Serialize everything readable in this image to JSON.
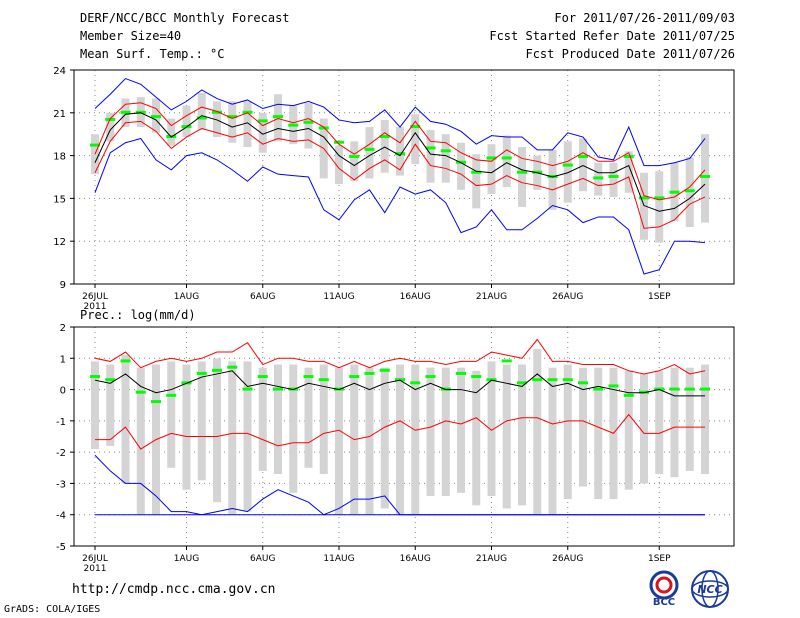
{
  "header": {
    "title": "DERF/NCC/BCC Monthly Forecast",
    "member_size": "Member Size=40",
    "variable": "Mean Surf. Temp.: °C",
    "period": "For 2011/07/26-2011/09/03",
    "started": "Fcst Started Refer Date 2011/07/25",
    "produced": "Fcst Produced Date 2011/07/26"
  },
  "footer": {
    "url": "http://cmdp.ncc.cma.gov.cn",
    "grads": "GrADS: COLA/IGES",
    "logo1_text": "BCC",
    "logo2_text": "NCC"
  },
  "colors": {
    "box": "#d4d4d4",
    "median": "#00ff00",
    "mean": "#000000",
    "spread": "#ff0000",
    "extreme": "#0000ff"
  },
  "chart_data": [
    {
      "type": "box",
      "title": "Mean Surf. Temp.: °C",
      "x_ticks": [
        "26JUL",
        "1AUG",
        "6AUG",
        "11AUG",
        "16AUG",
        "21AUG",
        "26AUG",
        "1SEP"
      ],
      "x_tick_days": [
        0,
        6,
        11,
        16,
        21,
        26,
        31,
        37
      ],
      "x_year_label": "2011",
      "ylim": [
        9,
        24
      ],
      "y_ticks": [
        9,
        12,
        15,
        18,
        21,
        24
      ],
      "ensemble_mean": [
        17.5,
        19.8,
        20.9,
        21.0,
        20.5,
        19.3,
        20.0,
        20.8,
        20.5,
        20.0,
        20.3,
        19.5,
        19.9,
        19.7,
        19.9,
        19.3,
        18.0,
        17.3,
        18.0,
        18.6,
        18.0,
        19.6,
        18.1,
        18.0,
        17.5,
        16.9,
        16.8,
        17.5,
        17.0,
        16.8,
        16.5,
        16.8,
        17.3,
        16.8,
        16.8,
        17.3,
        14.5,
        14.1,
        14.3,
        15.0,
        16.0
      ],
      "spread_upper": [
        18.1,
        20.6,
        21.6,
        21.7,
        21.3,
        20.1,
        20.8,
        21.4,
        21.1,
        20.6,
        21.0,
        20.1,
        20.6,
        20.3,
        20.6,
        20.0,
        18.8,
        18.1,
        18.8,
        19.6,
        18.9,
        20.4,
        19.0,
        18.9,
        18.2,
        17.7,
        17.6,
        18.4,
        17.8,
        17.6,
        17.3,
        17.6,
        18.2,
        17.6,
        17.6,
        18.2,
        15.2,
        14.9,
        15.1,
        15.8,
        17.0
      ],
      "spread_lower": [
        16.8,
        19.0,
        20.3,
        20.4,
        19.7,
        18.5,
        19.3,
        19.9,
        19.6,
        19.3,
        19.6,
        18.8,
        19.2,
        19.0,
        19.1,
        18.5,
        17.1,
        16.3,
        17.1,
        17.7,
        17.0,
        18.8,
        17.3,
        17.1,
        16.7,
        15.9,
        16.0,
        16.6,
        16.1,
        15.9,
        15.6,
        16.0,
        16.4,
        15.9,
        16.0,
        16.5,
        12.9,
        13.0,
        13.5,
        14.6,
        15.1
      ],
      "max": [
        21.3,
        22.3,
        23.4,
        23.0,
        22.1,
        21.2,
        21.8,
        22.6,
        22.0,
        21.6,
        21.9,
        21.3,
        21.6,
        21.5,
        21.8,
        21.4,
        20.5,
        20.3,
        20.4,
        21.2,
        20.0,
        21.4,
        20.4,
        20.2,
        19.7,
        18.8,
        19.4,
        19.3,
        19.3,
        18.4,
        18.4,
        19.6,
        19.3,
        17.9,
        17.7,
        20.0,
        17.3,
        17.3,
        17.5,
        17.8,
        19.2
      ],
      "min": [
        15.4,
        18.2,
        18.9,
        19.2,
        17.7,
        17.0,
        18.0,
        18.2,
        17.7,
        17.0,
        16.2,
        17.2,
        16.7,
        16.6,
        16.5,
        14.2,
        13.5,
        14.9,
        15.6,
        14.0,
        15.8,
        15.3,
        15.6,
        14.7,
        12.6,
        13.0,
        14.2,
        12.8,
        12.8,
        13.6,
        14.5,
        14.2,
        13.3,
        13.7,
        13.7,
        12.8,
        9.7,
        10.0,
        12.0,
        12.0,
        11.9
      ],
      "box_hi": [
        19.5,
        21.0,
        22.0,
        22.1,
        22.0,
        20.6,
        21.5,
        22.4,
        21.8,
        21.8,
        21.8,
        21.0,
        22.3,
        21.5,
        21.7,
        20.6,
        18.7,
        19.0,
        20.0,
        20.5,
        20.0,
        20.9,
        19.8,
        19.5,
        18.9,
        18.1,
        18.8,
        19.4,
        18.6,
        18.0,
        18.4,
        19.0,
        19.2,
        17.5,
        17.5,
        18.3,
        16.8,
        16.9,
        17.5,
        17.9,
        19.5
      ],
      "box_lo": [
        16.7,
        19.0,
        20.0,
        20.0,
        19.6,
        18.7,
        19.3,
        19.8,
        19.3,
        18.9,
        18.6,
        18.2,
        19.0,
        18.8,
        18.5,
        16.4,
        16.0,
        16.2,
        16.4,
        16.8,
        16.6,
        17.4,
        16.1,
        16.1,
        15.6,
        14.3,
        15.3,
        15.8,
        14.4,
        15.6,
        14.2,
        14.7,
        15.5,
        15.2,
        15.1,
        15.4,
        12.1,
        11.9,
        13.4,
        13.0,
        13.3
      ],
      "median": [
        18.7,
        20.5,
        21.0,
        21.0,
        20.7,
        19.3,
        20.0,
        20.6,
        21.0,
        20.7,
        21.0,
        20.4,
        20.7,
        20.1,
        20.3,
        19.9,
        18.9,
        17.9,
        18.4,
        19.3,
        18.1,
        20.0,
        18.5,
        18.3,
        17.5,
        16.8,
        17.8,
        17.8,
        16.8,
        16.8,
        16.5,
        17.3,
        17.9,
        16.4,
        16.5,
        17.9,
        15.0,
        15.0,
        15.4,
        15.5,
        16.5
      ]
    },
    {
      "type": "box",
      "title": "Prec.: log(mm/d)",
      "x_ticks": [
        "26JUL",
        "1AUG",
        "6AUG",
        "11AUG",
        "16AUG",
        "21AUG",
        "26AUG",
        "1SEP"
      ],
      "x_tick_days": [
        0,
        6,
        11,
        16,
        21,
        26,
        31,
        37
      ],
      "x_year_label": "2011",
      "ylim": [
        -5,
        2
      ],
      "y_ticks": [
        -5,
        -4,
        -3,
        -2,
        -1,
        0,
        1,
        2
      ],
      "ensemble_mean": [
        0.3,
        0.2,
        0.5,
        0.1,
        -0.1,
        0.0,
        0.2,
        0.4,
        0.5,
        0.6,
        0.1,
        0.2,
        0.1,
        0.0,
        0.2,
        0.1,
        0.0,
        0.2,
        0.0,
        0.2,
        0.3,
        0.0,
        0.2,
        0.0,
        0.0,
        -0.1,
        0.3,
        0.2,
        0.1,
        0.5,
        0.1,
        0.2,
        0.0,
        0.1,
        0.0,
        -0.1,
        -0.1,
        0.0,
        -0.2,
        -0.2,
        -0.2
      ],
      "spread_upper": [
        1.0,
        0.9,
        1.2,
        0.7,
        0.9,
        1.0,
        0.9,
        1.0,
        1.2,
        1.2,
        1.5,
        0.8,
        1.0,
        1.0,
        0.9,
        0.9,
        0.7,
        0.9,
        0.7,
        0.9,
        1.0,
        0.9,
        0.9,
        0.8,
        0.9,
        0.9,
        1.2,
        1.1,
        1.0,
        1.6,
        0.9,
        0.9,
        0.8,
        0.8,
        0.8,
        0.6,
        0.5,
        0.6,
        0.8,
        0.5,
        0.6
      ],
      "spread_lower": [
        -1.6,
        -1.6,
        -1.2,
        -1.9,
        -1.6,
        -1.4,
        -1.5,
        -1.5,
        -1.5,
        -1.4,
        -1.4,
        -1.6,
        -1.8,
        -1.7,
        -1.7,
        -1.4,
        -1.3,
        -1.6,
        -1.5,
        -1.2,
        -1.0,
        -1.3,
        -1.2,
        -1.0,
        -1.1,
        -0.9,
        -1.3,
        -1.0,
        -0.9,
        -0.9,
        -1.1,
        -1.0,
        -1.0,
        -1.2,
        -1.4,
        -0.8,
        -1.4,
        -1.4,
        -1.2,
        -1.2,
        -1.2
      ],
      "max": [
        -2.1,
        -2.6,
        -3.0,
        -3.0,
        -3.4,
        -3.9,
        -3.9,
        -4.0,
        -3.9,
        -3.8,
        -3.9,
        -3.5,
        -3.2,
        -3.4,
        -3.6,
        -4.0,
        -3.8,
        -3.5,
        -3.5,
        -3.4,
        -4.0,
        -4.0,
        -4.0,
        -4.0,
        -4.0,
        -4.0,
        -4.0,
        -4.0,
        -4.0,
        -4.0,
        -4.0,
        -4.0,
        -4.0,
        -4.0,
        -4.0,
        -4.0,
        -4.0,
        -4.0,
        -4.0,
        -4.0,
        -4.0
      ],
      "min": [
        -4.0,
        -4.0,
        -4.0,
        -4.0,
        -4.0,
        -4.0,
        -4.0,
        -4.0,
        -4.0,
        -4.0,
        -4.0,
        -4.0,
        -4.0,
        -4.0,
        -4.0,
        -4.0,
        -4.0,
        -4.0,
        -4.0,
        -4.0,
        -4.0,
        -4.0,
        -4.0,
        -4.0,
        -4.0,
        -4.0,
        -4.0,
        -4.0,
        -4.0,
        -4.0,
        -4.0,
        -4.0,
        -4.0,
        -4.0,
        -4.0,
        -4.0,
        -4.0,
        -4.0,
        -4.0,
        -4.0,
        -4.0
      ],
      "box_hi": [
        0.9,
        0.8,
        1.1,
        0.7,
        0.8,
        0.9,
        0.8,
        0.9,
        1.0,
        0.9,
        0.9,
        0.7,
        0.8,
        0.8,
        0.7,
        0.8,
        0.7,
        0.8,
        0.7,
        0.7,
        0.8,
        0.8,
        0.7,
        0.7,
        0.7,
        0.6,
        0.9,
        0.8,
        0.8,
        1.3,
        0.7,
        0.8,
        0.7,
        0.7,
        0.7,
        0.6,
        0.5,
        0.6,
        0.7,
        0.7,
        0.8
      ],
      "box_lo": [
        -1.9,
        -1.8,
        -3.0,
        -4.0,
        -4.0,
        -2.5,
        -3.2,
        -2.9,
        -3.6,
        -4.0,
        -3.9,
        -2.6,
        -2.7,
        -3.3,
        -2.5,
        -2.7,
        -4.0,
        -4.0,
        -4.0,
        -3.8,
        -4.0,
        -4.0,
        -3.4,
        -3.4,
        -3.3,
        -3.7,
        -3.4,
        -3.8,
        -3.7,
        -4.0,
        -4.0,
        -3.5,
        -3.1,
        -3.5,
        -3.5,
        -3.2,
        -3.0,
        -2.7,
        -2.8,
        -2.6,
        -2.7
      ],
      "median": [
        0.4,
        0.3,
        0.9,
        -0.1,
        -0.4,
        -0.2,
        0.2,
        0.5,
        0.6,
        0.7,
        0.0,
        0.4,
        0.0,
        0.0,
        0.4,
        0.3,
        0.0,
        0.4,
        0.5,
        0.6,
        0.3,
        0.2,
        0.4,
        0.0,
        0.5,
        0.4,
        0.3,
        0.9,
        0.2,
        0.3,
        0.3,
        0.3,
        0.2,
        0.0,
        0.1,
        -0.2,
        -0.1,
        0.0,
        0.0,
        0.0,
        0.0
      ]
    }
  ]
}
